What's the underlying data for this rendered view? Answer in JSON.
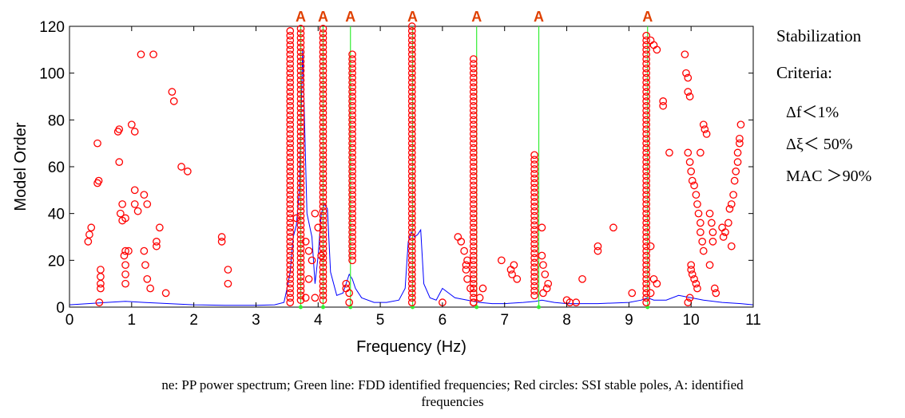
{
  "chart_data": {
    "type": "scatter",
    "xlabel": "Frequency (Hz)",
    "ylabel": "Model Order",
    "xlim": [
      0,
      11
    ],
    "ylim": [
      0,
      120
    ],
    "xticks": [
      0,
      1,
      2,
      3,
      4,
      5,
      6,
      7,
      8,
      9,
      10,
      11
    ],
    "yticks": [
      0,
      20,
      40,
      60,
      80,
      100,
      120
    ],
    "grid": false,
    "colors": {
      "spectrum": "#0000ff",
      "fdd": "#33ee33",
      "poles": "#ff0000",
      "marker_label": "#e04000"
    },
    "fdd_frequencies": [
      3.72,
      4.08,
      4.52,
      5.52,
      6.55,
      7.55,
      9.3
    ],
    "identified_label": "A",
    "stable_columns": [
      {
        "x": 3.55,
        "y_from": 2,
        "y_to": 118
      },
      {
        "x": 3.72,
        "y_from": 3,
        "y_to": 120
      },
      {
        "x": 4.08,
        "y_from": 3,
        "y_to": 120
      },
      {
        "x": 4.55,
        "y_from": 20,
        "y_to": 108
      },
      {
        "x": 5.51,
        "y_from": 2,
        "y_to": 120
      },
      {
        "x": 6.5,
        "y_from": 2,
        "y_to": 106
      },
      {
        "x": 7.48,
        "y_from": 5,
        "y_to": 66
      },
      {
        "x": 9.28,
        "y_from": 2,
        "y_to": 116
      }
    ],
    "scattered_poles": [
      [
        0.3,
        28
      ],
      [
        0.32,
        31
      ],
      [
        0.35,
        34
      ],
      [
        0.45,
        70
      ],
      [
        0.45,
        53
      ],
      [
        0.47,
        54
      ],
      [
        0.5,
        16
      ],
      [
        0.5,
        13
      ],
      [
        0.5,
        10
      ],
      [
        0.5,
        8
      ],
      [
        0.48,
        2
      ],
      [
        0.78,
        75
      ],
      [
        0.8,
        76
      ],
      [
        0.8,
        62
      ],
      [
        0.82,
        40
      ],
      [
        0.85,
        44
      ],
      [
        0.85,
        37
      ],
      [
        0.9,
        24
      ],
      [
        0.88,
        22
      ],
      [
        0.9,
        18
      ],
      [
        0.9,
        14
      ],
      [
        0.9,
        10
      ],
      [
        0.9,
        38
      ],
      [
        0.95,
        24
      ],
      [
        1.0,
        78
      ],
      [
        1.05,
        75
      ],
      [
        1.05,
        50
      ],
      [
        1.05,
        44
      ],
      [
        1.1,
        41
      ],
      [
        1.15,
        108
      ],
      [
        1.2,
        48
      ],
      [
        1.2,
        24
      ],
      [
        1.22,
        18
      ],
      [
        1.25,
        44
      ],
      [
        1.25,
        12
      ],
      [
        1.3,
        8
      ],
      [
        1.35,
        108
      ],
      [
        1.4,
        28
      ],
      [
        1.4,
        26
      ],
      [
        1.45,
        34
      ],
      [
        1.55,
        6
      ],
      [
        1.65,
        92
      ],
      [
        1.68,
        88
      ],
      [
        1.8,
        60
      ],
      [
        1.9,
        58
      ],
      [
        2.45,
        30
      ],
      [
        2.45,
        28
      ],
      [
        2.55,
        16
      ],
      [
        2.55,
        10
      ],
      [
        3.65,
        38
      ],
      [
        3.8,
        28
      ],
      [
        3.85,
        24
      ],
      [
        3.9,
        20
      ],
      [
        3.85,
        12
      ],
      [
        3.8,
        4
      ],
      [
        3.95,
        40
      ],
      [
        3.95,
        4
      ],
      [
        4.0,
        34
      ],
      [
        4.05,
        22
      ],
      [
        4.45,
        10
      ],
      [
        4.45,
        8
      ],
      [
        4.5,
        6
      ],
      [
        4.5,
        2
      ],
      [
        6.0,
        2
      ],
      [
        6.25,
        30
      ],
      [
        6.3,
        28
      ],
      [
        6.35,
        24
      ],
      [
        6.4,
        20
      ],
      [
        6.38,
        18
      ],
      [
        6.38,
        16
      ],
      [
        6.4,
        12
      ],
      [
        6.45,
        8
      ],
      [
        6.6,
        4
      ],
      [
        6.65,
        8
      ],
      [
        6.5,
        2
      ],
      [
        6.95,
        20
      ],
      [
        7.1,
        16
      ],
      [
        7.12,
        14
      ],
      [
        7.15,
        18
      ],
      [
        7.2,
        12
      ],
      [
        7.6,
        22
      ],
      [
        7.62,
        18
      ],
      [
        7.65,
        14
      ],
      [
        7.7,
        10
      ],
      [
        7.68,
        8
      ],
      [
        7.6,
        34
      ],
      [
        7.62,
        6
      ],
      [
        8.0,
        3
      ],
      [
        8.05,
        2
      ],
      [
        8.15,
        2
      ],
      [
        8.25,
        12
      ],
      [
        8.5,
        26
      ],
      [
        8.5,
        24
      ],
      [
        8.75,
        34
      ],
      [
        9.05,
        6
      ],
      [
        9.35,
        114
      ],
      [
        9.4,
        112
      ],
      [
        9.45,
        110
      ],
      [
        9.55,
        88
      ],
      [
        9.55,
        86
      ],
      [
        9.65,
        66
      ],
      [
        9.35,
        26
      ],
      [
        9.4,
        12
      ],
      [
        9.45,
        10
      ],
      [
        9.35,
        6
      ],
      [
        9.9,
        108
      ],
      [
        9.92,
        100
      ],
      [
        9.95,
        98
      ],
      [
        9.95,
        92
      ],
      [
        9.98,
        90
      ],
      [
        9.95,
        66
      ],
      [
        9.98,
        62
      ],
      [
        10.0,
        58
      ],
      [
        10.02,
        54
      ],
      [
        10.05,
        52
      ],
      [
        10.08,
        48
      ],
      [
        10.1,
        44
      ],
      [
        10.12,
        40
      ],
      [
        10.15,
        36
      ],
      [
        10.15,
        32
      ],
      [
        10.18,
        28
      ],
      [
        10.2,
        24
      ],
      [
        10.15,
        66
      ],
      [
        10.2,
        78
      ],
      [
        10.22,
        76
      ],
      [
        10.25,
        74
      ],
      [
        10.0,
        18
      ],
      [
        10.0,
        16
      ],
      [
        10.02,
        14
      ],
      [
        10.05,
        12
      ],
      [
        10.08,
        10
      ],
      [
        10.1,
        8
      ],
      [
        9.98,
        4
      ],
      [
        9.95,
        2
      ],
      [
        10.3,
        40
      ],
      [
        10.33,
        36
      ],
      [
        10.35,
        32
      ],
      [
        10.35,
        28
      ],
      [
        10.38,
        8
      ],
      [
        10.4,
        6
      ],
      [
        10.5,
        34
      ],
      [
        10.52,
        30
      ],
      [
        10.55,
        32
      ],
      [
        10.6,
        36
      ],
      [
        10.62,
        42
      ],
      [
        10.65,
        44
      ],
      [
        10.68,
        48
      ],
      [
        10.7,
        54
      ],
      [
        10.72,
        58
      ],
      [
        10.75,
        62
      ],
      [
        10.75,
        66
      ],
      [
        10.78,
        70
      ],
      [
        10.78,
        72
      ],
      [
        10.8,
        78
      ],
      [
        10.65,
        26
      ],
      [
        10.3,
        18
      ]
    ],
    "spectrum": [
      [
        0.0,
        1
      ],
      [
        0.3,
        1.5
      ],
      [
        0.6,
        2
      ],
      [
        0.9,
        2.5
      ],
      [
        1.2,
        2
      ],
      [
        1.6,
        1.5
      ],
      [
        2.0,
        1
      ],
      [
        2.5,
        0.8
      ],
      [
        3.0,
        0.8
      ],
      [
        3.3,
        1
      ],
      [
        3.45,
        2
      ],
      [
        3.5,
        8
      ],
      [
        3.55,
        15
      ],
      [
        3.6,
        30
      ],
      [
        3.65,
        35
      ],
      [
        3.7,
        50
      ],
      [
        3.75,
        110
      ],
      [
        3.78,
        80
      ],
      [
        3.82,
        40
      ],
      [
        3.9,
        30
      ],
      [
        3.95,
        10
      ],
      [
        4.0,
        22
      ],
      [
        4.05,
        40
      ],
      [
        4.1,
        44
      ],
      [
        4.15,
        42
      ],
      [
        4.2,
        15
      ],
      [
        4.3,
        5
      ],
      [
        4.4,
        6
      ],
      [
        4.5,
        14
      ],
      [
        4.55,
        12
      ],
      [
        4.6,
        8
      ],
      [
        4.7,
        4
      ],
      [
        4.9,
        2
      ],
      [
        5.1,
        2
      ],
      [
        5.3,
        3
      ],
      [
        5.4,
        8
      ],
      [
        5.45,
        28
      ],
      [
        5.5,
        32
      ],
      [
        5.55,
        30
      ],
      [
        5.6,
        31
      ],
      [
        5.65,
        33
      ],
      [
        5.7,
        10
      ],
      [
        5.8,
        4
      ],
      [
        5.9,
        3
      ],
      [
        6.0,
        8
      ],
      [
        6.1,
        6
      ],
      [
        6.2,
        4
      ],
      [
        6.4,
        3
      ],
      [
        6.6,
        2
      ],
      [
        6.8,
        1.5
      ],
      [
        7.0,
        1.5
      ],
      [
        7.3,
        2
      ],
      [
        7.5,
        2.5
      ],
      [
        7.6,
        3
      ],
      [
        7.8,
        2
      ],
      [
        8.0,
        1.5
      ],
      [
        8.5,
        1.5
      ],
      [
        9.0,
        2
      ],
      [
        9.2,
        3
      ],
      [
        9.3,
        4
      ],
      [
        9.4,
        3
      ],
      [
        9.6,
        3
      ],
      [
        9.8,
        5
      ],
      [
        10.0,
        4
      ],
      [
        10.2,
        3
      ],
      [
        10.5,
        2
      ],
      [
        10.8,
        1.5
      ],
      [
        11.0,
        1
      ]
    ]
  },
  "criteria": {
    "title": "Stabilization",
    "subtitle": "Criteria:",
    "df": "Δf＜1%",
    "dxi": "Δξ＜ 50%",
    "mac": "MAC ＞90%"
  },
  "caption": {
    "line1": "ne: PP power spectrum; Green line: FDD identified frequencies; Red circles: SSI stable poles, A: identified",
    "line2": "frequencies"
  }
}
